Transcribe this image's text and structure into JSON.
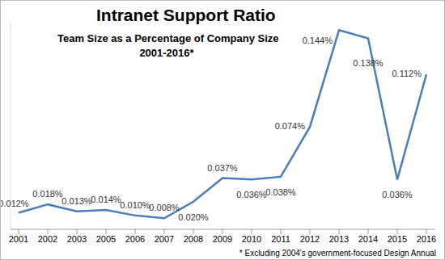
{
  "chart_data": {
    "type": "line",
    "title": "Intranet Support Ratio",
    "subtitle": [
      "Team Size as a Percentage of Company Size",
      "2001-2016*"
    ],
    "annotations": [
      "* Excluding 2004's government-focused Design Annual"
    ],
    "categories": [
      "2001",
      "2002",
      "2003",
      "2005",
      "2006",
      "2007",
      "2008",
      "2009",
      "2010",
      "2011",
      "2012",
      "2013",
      "2014",
      "2015",
      "2016"
    ],
    "values": [
      0.012,
      0.018,
      0.013,
      0.014,
      0.01,
      0.008,
      0.02,
      0.037,
      0.036,
      0.038,
      0.074,
      0.144,
      0.138,
      0.036,
      0.112
    ],
    "value_labels": [
      "0.012%",
      "0.018%",
      "0.013%",
      "0.014%",
      "0.010%",
      "0.008%",
      "0.020%",
      "0.037%",
      "0.036%",
      "0.038%",
      "0.074%",
      "0.144%",
      "0.138%",
      "0.036%",
      "0.112%"
    ],
    "ylim": [
      0,
      0.15
    ],
    "color": "#4a7ebb",
    "marker": "none",
    "line_style": "solid",
    "data_labels": true,
    "grid": false,
    "tick_labels": "x"
  }
}
